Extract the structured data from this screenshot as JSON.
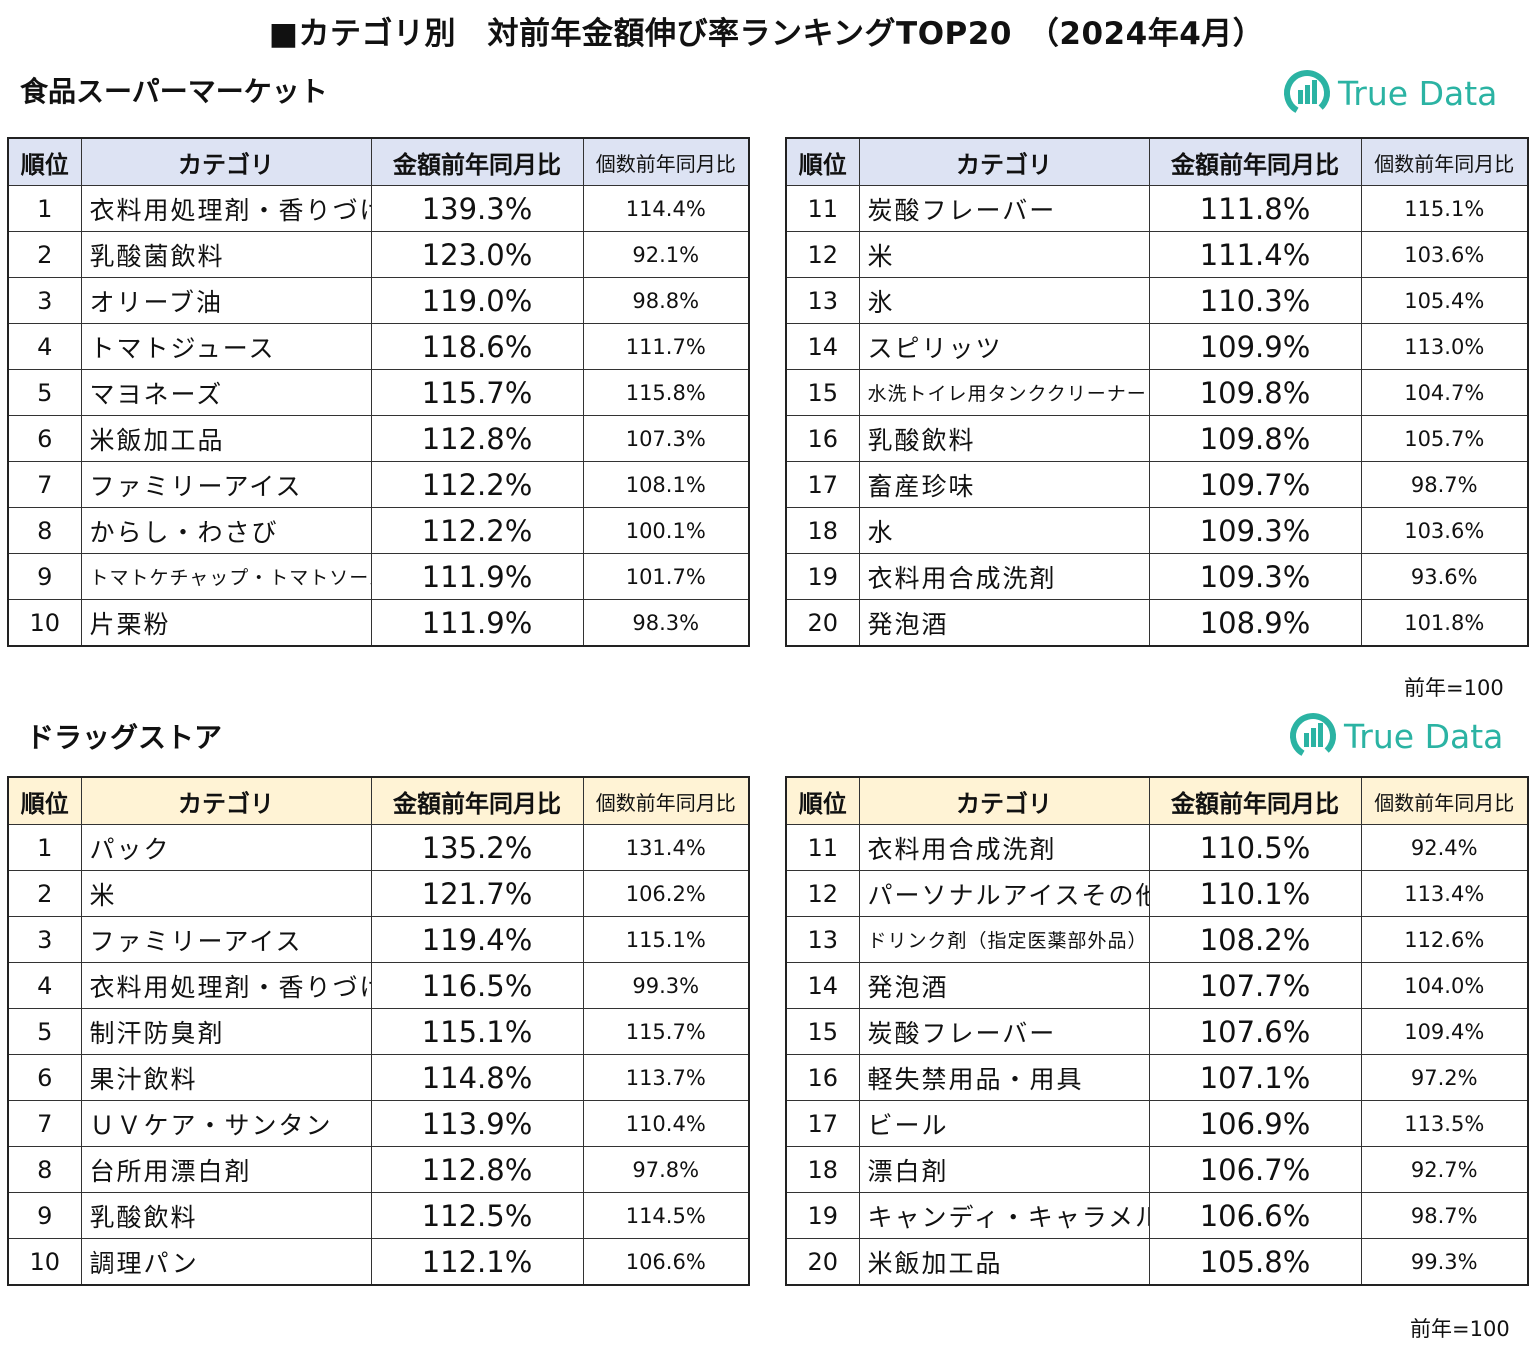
{
  "title": "■カテゴリ別　対前年金額伸び率ランキングTOP20　（2024年4月）",
  "logo_text": "True Data",
  "columns": {
    "rank": "順位",
    "category": "カテゴリ",
    "amount": "金額前年同月比",
    "quantity": "個数前年同月比"
  },
  "base_note": "前年=100",
  "colors": {
    "supermarket_header": "#dde3f3",
    "drugstore_header": "#fff3d5",
    "logo": "#2bb3a3"
  },
  "supermarket": {
    "title": "食品スーパーマーケット",
    "left": [
      {
        "rank": "1",
        "category": "衣料用処理剤・香りづけ",
        "amount": "139.3%",
        "quantity": "114.4%"
      },
      {
        "rank": "2",
        "category": "乳酸菌飲料",
        "amount": "123.0%",
        "quantity": "92.1%"
      },
      {
        "rank": "3",
        "category": "オリーブ油",
        "amount": "119.0%",
        "quantity": "98.8%"
      },
      {
        "rank": "4",
        "category": "トマトジュース",
        "amount": "118.6%",
        "quantity": "111.7%"
      },
      {
        "rank": "5",
        "category": "マヨネーズ",
        "amount": "115.7%",
        "quantity": "115.8%"
      },
      {
        "rank": "6",
        "category": "米飯加工品",
        "amount": "112.8%",
        "quantity": "107.3%"
      },
      {
        "rank": "7",
        "category": "ファミリーアイス",
        "amount": "112.2%",
        "quantity": "108.1%"
      },
      {
        "rank": "8",
        "category": "からし・わさび",
        "amount": "112.2%",
        "quantity": "100.1%"
      },
      {
        "rank": "9",
        "category": "トマトケチャップ・トマトソース",
        "amount": "111.9%",
        "quantity": "101.7%"
      },
      {
        "rank": "10",
        "category": "片栗粉",
        "amount": "111.9%",
        "quantity": "98.3%"
      }
    ],
    "right": [
      {
        "rank": "11",
        "category": "炭酸フレーバー",
        "amount": "111.8%",
        "quantity": "115.1%"
      },
      {
        "rank": "12",
        "category": "米",
        "amount": "111.4%",
        "quantity": "103.6%"
      },
      {
        "rank": "13",
        "category": "氷",
        "amount": "110.3%",
        "quantity": "105.4%"
      },
      {
        "rank": "14",
        "category": "スピリッツ",
        "amount": "109.9%",
        "quantity": "113.0%"
      },
      {
        "rank": "15",
        "category": "水洗トイレ用タンククリーナー",
        "amount": "109.8%",
        "quantity": "104.7%"
      },
      {
        "rank": "16",
        "category": "乳酸飲料",
        "amount": "109.8%",
        "quantity": "105.7%"
      },
      {
        "rank": "17",
        "category": "畜産珍味",
        "amount": "109.7%",
        "quantity": "98.7%"
      },
      {
        "rank": "18",
        "category": "水",
        "amount": "109.3%",
        "quantity": "103.6%"
      },
      {
        "rank": "19",
        "category": "衣料用合成洗剤",
        "amount": "109.3%",
        "quantity": "93.6%"
      },
      {
        "rank": "20",
        "category": "発泡酒",
        "amount": "108.9%",
        "quantity": "101.8%"
      }
    ]
  },
  "drugstore": {
    "title": "ドラッグストア",
    "left": [
      {
        "rank": "1",
        "category": "パック",
        "amount": "135.2%",
        "quantity": "131.4%"
      },
      {
        "rank": "2",
        "category": "米",
        "amount": "121.7%",
        "quantity": "106.2%"
      },
      {
        "rank": "3",
        "category": "ファミリーアイス",
        "amount": "119.4%",
        "quantity": "115.1%"
      },
      {
        "rank": "4",
        "category": "衣料用処理剤・香りづけ",
        "amount": "116.5%",
        "quantity": "99.3%"
      },
      {
        "rank": "5",
        "category": "制汗防臭剤",
        "amount": "115.1%",
        "quantity": "115.7%"
      },
      {
        "rank": "6",
        "category": "果汁飲料",
        "amount": "114.8%",
        "quantity": "113.7%"
      },
      {
        "rank": "7",
        "category": "ＵＶケア・サンタン",
        "amount": "113.9%",
        "quantity": "110.4%"
      },
      {
        "rank": "8",
        "category": "台所用漂白剤",
        "amount": "112.8%",
        "quantity": "97.8%"
      },
      {
        "rank": "9",
        "category": "乳酸飲料",
        "amount": "112.5%",
        "quantity": "114.5%"
      },
      {
        "rank": "10",
        "category": "調理パン",
        "amount": "112.1%",
        "quantity": "106.6%"
      }
    ],
    "right": [
      {
        "rank": "11",
        "category": "衣料用合成洗剤",
        "amount": "110.5%",
        "quantity": "92.4%"
      },
      {
        "rank": "12",
        "category": "パーソナルアイスその他",
        "amount": "110.1%",
        "quantity": "113.4%"
      },
      {
        "rank": "13",
        "category": "ドリンク剤（指定医薬部外品）",
        "amount": "108.2%",
        "quantity": "112.6%"
      },
      {
        "rank": "14",
        "category": "発泡酒",
        "amount": "107.7%",
        "quantity": "104.0%"
      },
      {
        "rank": "15",
        "category": "炭酸フレーバー",
        "amount": "107.6%",
        "quantity": "109.4%"
      },
      {
        "rank": "16",
        "category": "軽失禁用品・用具",
        "amount": "107.1%",
        "quantity": "97.2%"
      },
      {
        "rank": "17",
        "category": "ビール",
        "amount": "106.9%",
        "quantity": "113.5%"
      },
      {
        "rank": "18",
        "category": "漂白剤",
        "amount": "106.7%",
        "quantity": "92.7%"
      },
      {
        "rank": "19",
        "category": "キャンディ・キャラメル",
        "amount": "106.6%",
        "quantity": "98.7%"
      },
      {
        "rank": "20",
        "category": "米飯加工品",
        "amount": "105.8%",
        "quantity": "99.3%"
      }
    ]
  }
}
